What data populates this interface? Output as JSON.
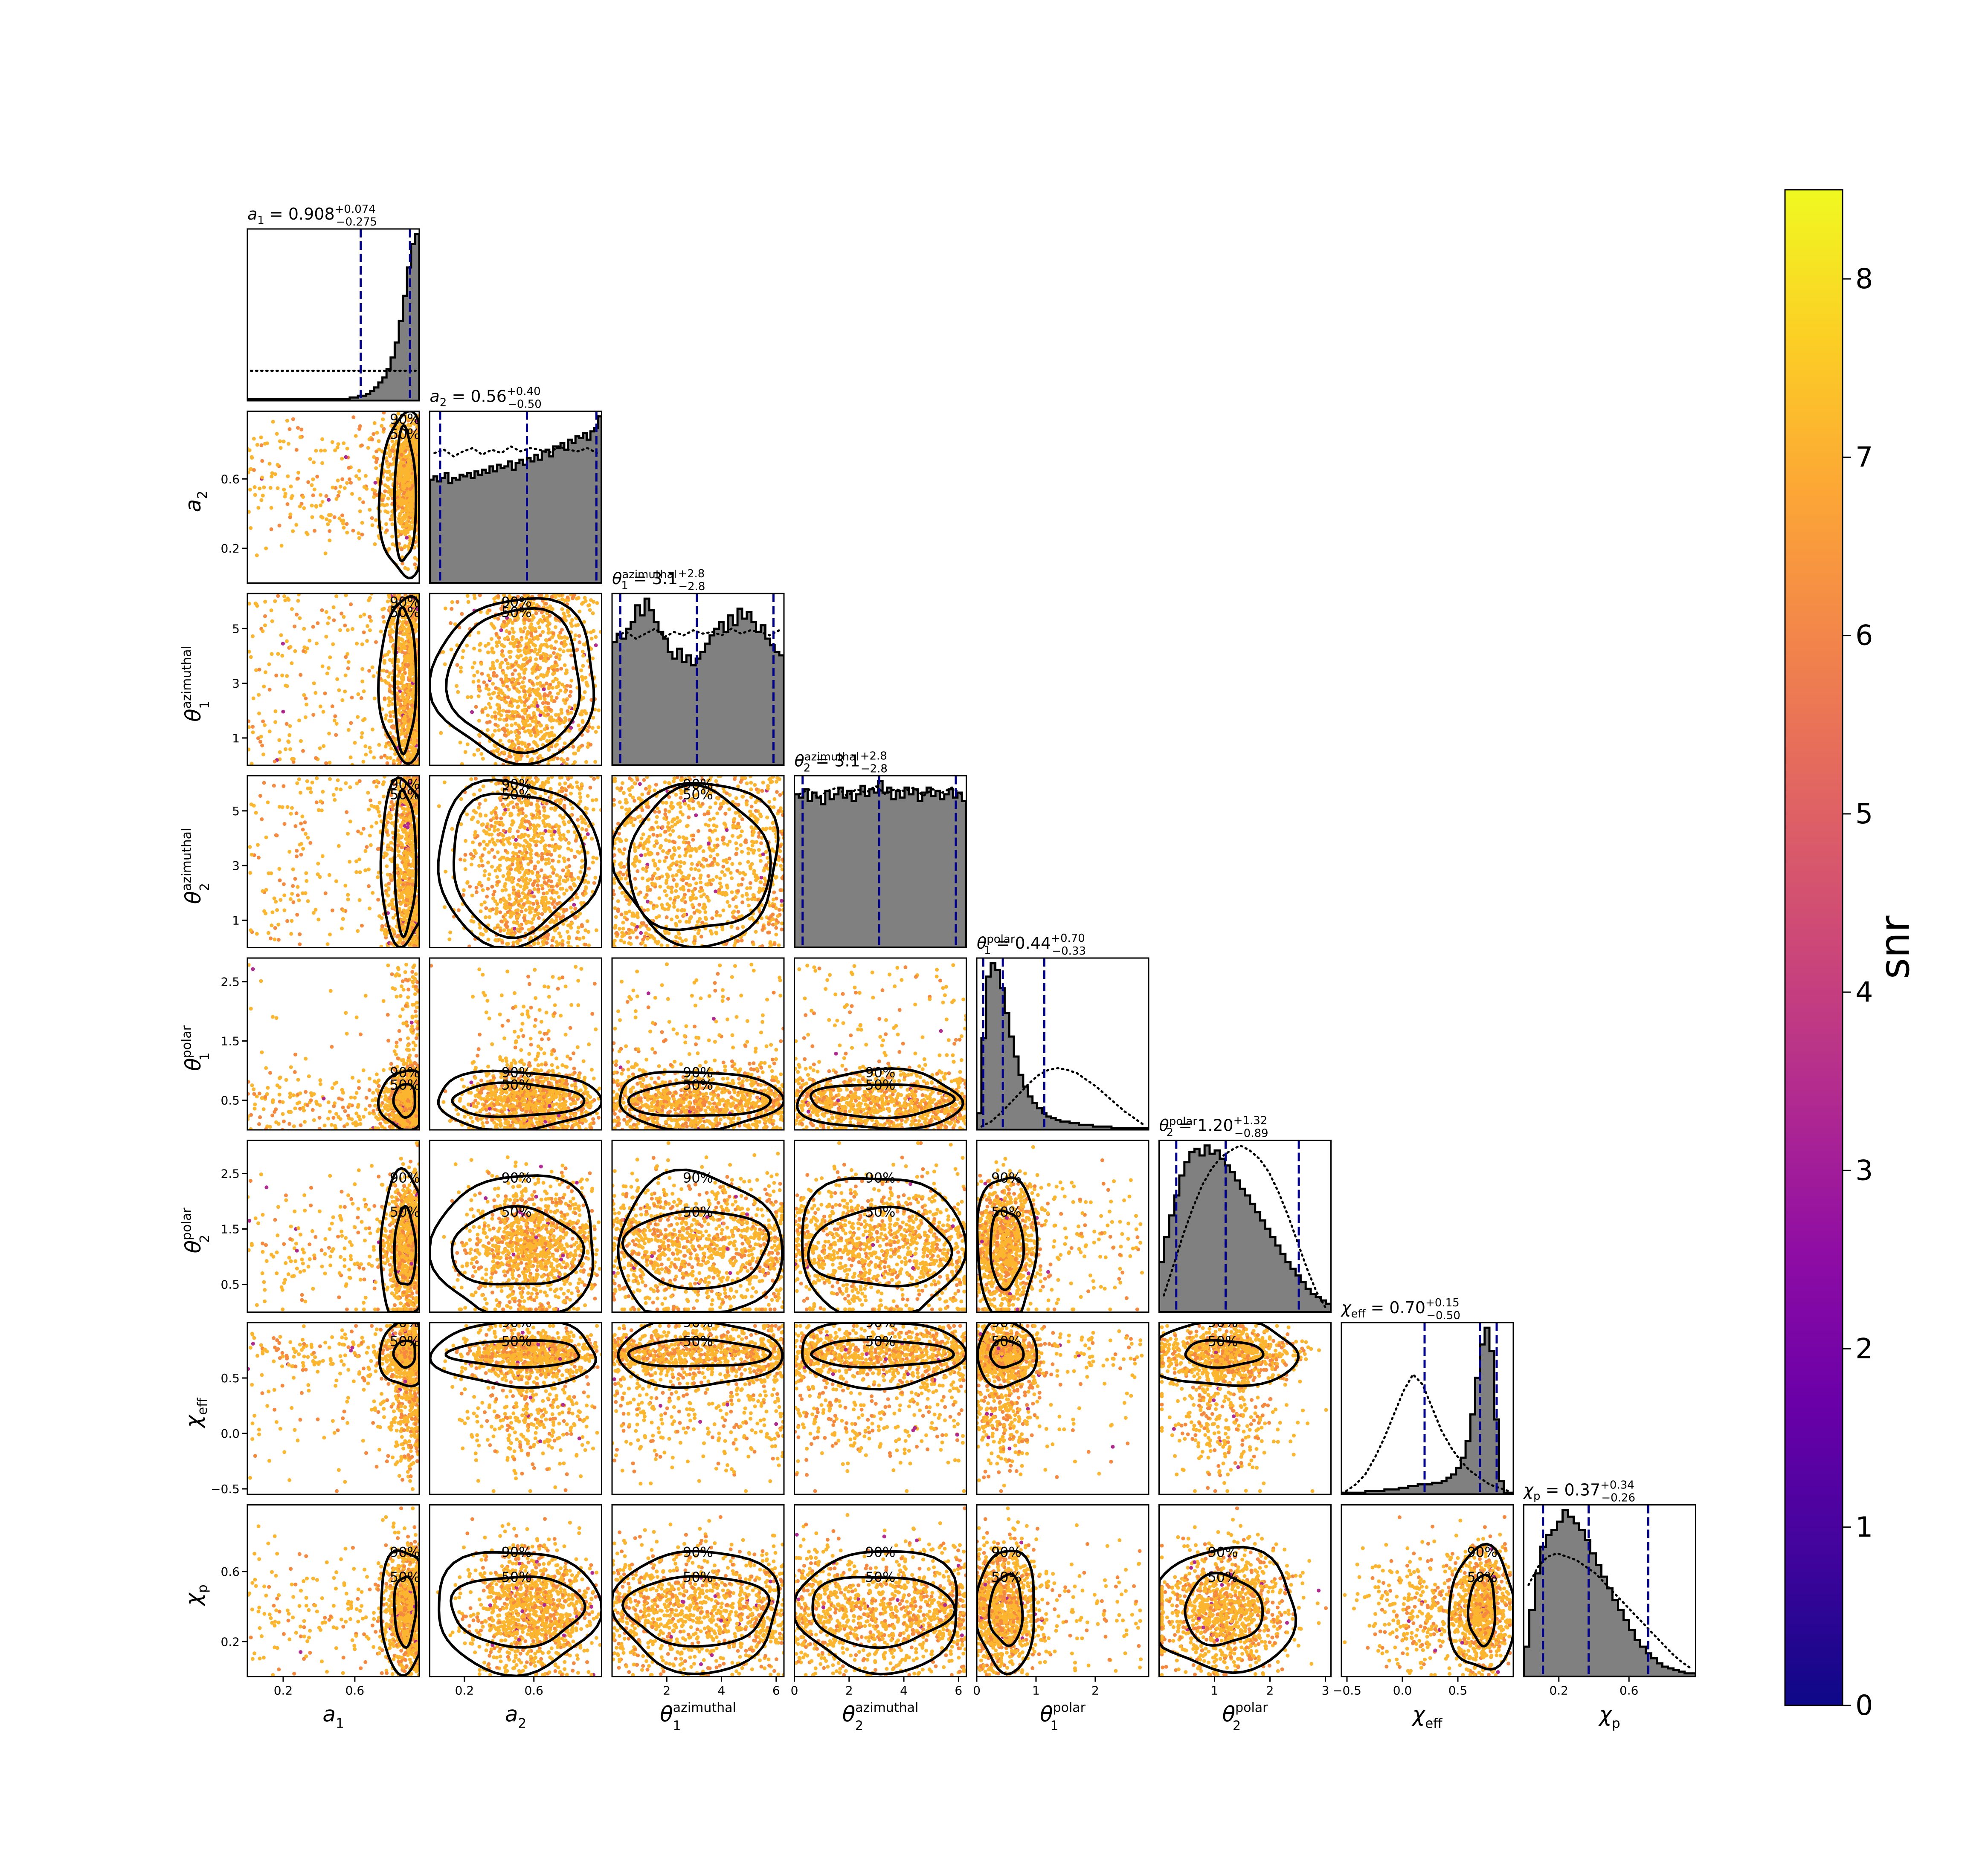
{
  "chart_data": {
    "type": "scatter",
    "parameters": [
      {
        "key": "a1",
        "axis_label": "a",
        "axis_sub": "1",
        "axis_sup": "",
        "lim": [
          0.0,
          0.96
        ],
        "ticks": [
          "0.2",
          "0.6"
        ],
        "tick_values": [
          0.2,
          0.6
        ],
        "title_value": "0.908",
        "err_plus": "+0.074",
        "err_minus": "−0.275",
        "median": 0.908,
        "lo": 0.633,
        "hi": 0.982
      },
      {
        "key": "a2",
        "axis_label": "a",
        "axis_sub": "2",
        "axis_sup": "",
        "lim": [
          0.0,
          0.99
        ],
        "ticks": [
          "0.2",
          "0.6"
        ],
        "tick_values": [
          0.2,
          0.6
        ],
        "title_value": "0.56",
        "err_plus": "+0.40",
        "err_minus": "−0.50",
        "median": 0.56,
        "lo": 0.06,
        "hi": 0.96
      },
      {
        "key": "t1a",
        "axis_label": "θ",
        "axis_sub": "1",
        "axis_sup": "azimuthal",
        "lim": [
          0.0,
          6.283
        ],
        "ticks": [
          "2",
          "4",
          "6"
        ],
        "tick_values": [
          2,
          4,
          6
        ],
        "y_ticks": [
          "1",
          "3",
          "5"
        ],
        "y_tick_values": [
          1,
          3,
          5
        ],
        "title_value": "3.1",
        "err_plus": "+2.8",
        "err_minus": "−2.8",
        "median": 3.1,
        "lo": 0.3,
        "hi": 5.9
      },
      {
        "key": "t2a",
        "axis_label": "θ",
        "axis_sub": "2",
        "axis_sup": "azimuthal",
        "lim": [
          0.0,
          6.283
        ],
        "ticks": [
          "0",
          "2",
          "4",
          "6"
        ],
        "tick_values": [
          0,
          2,
          4,
          6
        ],
        "y_ticks": [
          "1",
          "3",
          "5"
        ],
        "y_tick_values": [
          1,
          3,
          5
        ],
        "title_value": "3.1",
        "err_plus": "+2.8",
        "err_minus": "−2.8",
        "median": 3.1,
        "lo": 0.3,
        "hi": 5.9
      },
      {
        "key": "t1p",
        "axis_label": "θ",
        "axis_sub": "1",
        "axis_sup": "polar",
        "lim": [
          0.0,
          2.9
        ],
        "ticks": [
          "0",
          "1",
          "2"
        ],
        "tick_values": [
          0,
          1,
          2
        ],
        "y_ticks": [
          "0.5",
          "1.5",
          "2.5"
        ],
        "y_tick_values": [
          0.5,
          1.5,
          2.5
        ],
        "title_value": "0.44",
        "err_plus": "+0.70",
        "err_minus": "−0.33",
        "median": 0.44,
        "lo": 0.11,
        "hi": 1.14
      },
      {
        "key": "t2p",
        "axis_label": "θ",
        "axis_sub": "2",
        "axis_sup": "polar",
        "lim": [
          0.0,
          3.1
        ],
        "ticks": [
          "1",
          "2",
          "3"
        ],
        "tick_values": [
          1,
          2,
          3
        ],
        "y_ticks": [
          "0.5",
          "1.5",
          "2.5"
        ],
        "y_tick_values": [
          0.5,
          1.5,
          2.5
        ],
        "title_value": "1.20",
        "err_plus": "+1.32",
        "err_minus": "−0.89",
        "median": 1.2,
        "lo": 0.31,
        "hi": 2.52
      },
      {
        "key": "chi_eff",
        "axis_label": "χ",
        "axis_sub": "eff",
        "axis_sup": "",
        "lim": [
          -0.55,
          1.0
        ],
        "ticks": [
          "−0.5",
          "0.0",
          "0.5"
        ],
        "tick_values": [
          -0.5,
          0.0,
          0.5
        ],
        "title_value": "0.70",
        "err_plus": "+0.15",
        "err_minus": "−0.50",
        "median": 0.7,
        "lo": 0.2,
        "hi": 0.85
      },
      {
        "key": "chi_p",
        "axis_label": "χ",
        "axis_sub": "p",
        "axis_sup": "",
        "lim": [
          0.0,
          0.98
        ],
        "ticks": [
          "0.2",
          "0.6"
        ],
        "tick_values": [
          0.2,
          0.6
        ],
        "title_value": "0.37",
        "err_plus": "+0.34",
        "err_minus": "−0.26",
        "median": 0.37,
        "lo": 0.11,
        "hi": 0.71
      }
    ],
    "histogram_shapes": {
      "a1": [
        0.01,
        0.01,
        0.01,
        0.01,
        0.01,
        0.01,
        0.01,
        0.01,
        0.01,
        0.01,
        0.01,
        0.01,
        0.01,
        0.01,
        0.01,
        0.01,
        0.01,
        0.01,
        0.01,
        0.01,
        0.01,
        0.01,
        0.01,
        0.01,
        0.01,
        0.02,
        0.02,
        0.03,
        0.03,
        0.04,
        0.06,
        0.08,
        0.11,
        0.14,
        0.19,
        0.26,
        0.35,
        0.48,
        0.63,
        0.8,
        0.94,
        1.0
      ],
      "a2": [
        0.62,
        0.64,
        0.61,
        0.63,
        0.66,
        0.6,
        0.63,
        0.62,
        0.65,
        0.64,
        0.66,
        0.63,
        0.67,
        0.65,
        0.68,
        0.66,
        0.7,
        0.67,
        0.71,
        0.69,
        0.7,
        0.73,
        0.68,
        0.72,
        0.74,
        0.71,
        0.75,
        0.73,
        0.77,
        0.74,
        0.79,
        0.8,
        0.76,
        0.82,
        0.81,
        0.84,
        0.8,
        0.86,
        0.84,
        0.88,
        0.87,
        0.9,
        0.86,
        0.91,
        0.93,
        1.0
      ],
      "t1a": [
        0.74,
        0.79,
        0.76,
        0.82,
        0.86,
        0.96,
        0.9,
        1.0,
        0.93,
        0.86,
        0.8,
        0.76,
        0.68,
        0.64,
        0.7,
        0.62,
        0.66,
        0.6,
        0.64,
        0.68,
        0.73,
        0.78,
        0.82,
        0.86,
        0.8,
        0.9,
        0.84,
        0.94,
        0.88,
        0.92,
        0.86,
        0.8,
        0.84,
        0.76,
        0.72,
        0.68,
        0.66
      ],
      "t2a": [
        0.92,
        0.9,
        0.95,
        0.88,
        0.93,
        0.9,
        0.86,
        0.94,
        0.89,
        0.92,
        0.96,
        0.9,
        0.94,
        0.88,
        0.92,
        0.97,
        0.91,
        0.95,
        0.93,
        1.0,
        0.93,
        0.96,
        0.89,
        0.94,
        0.9,
        0.96,
        0.92,
        0.95,
        0.88,
        0.93,
        0.96,
        0.91,
        0.94,
        0.89,
        0.92,
        0.95,
        0.9,
        0.93,
        0.88
      ],
      "t1p": [
        0.1,
        0.55,
        0.92,
        1.0,
        0.96,
        0.85,
        0.7,
        0.56,
        0.44,
        0.33,
        0.26,
        0.2,
        0.16,
        0.13,
        0.1,
        0.08,
        0.07,
        0.06,
        0.05,
        0.05,
        0.04,
        0.04,
        0.03,
        0.03,
        0.03,
        0.02,
        0.02,
        0.02,
        0.02,
        0.01,
        0.01,
        0.01,
        0.01,
        0.01,
        0.01,
        0.01,
        0.01
      ],
      "t2p": [
        0.3,
        0.45,
        0.58,
        0.7,
        0.82,
        0.9,
        0.96,
        0.98,
        0.94,
        1.0,
        0.95,
        0.97,
        0.92,
        0.88,
        0.84,
        0.79,
        0.74,
        0.7,
        0.65,
        0.6,
        0.55,
        0.5,
        0.45,
        0.4,
        0.35,
        0.3,
        0.26,
        0.22,
        0.18,
        0.14,
        0.11,
        0.09,
        0.07,
        0.05
      ],
      "chi_eff": [
        0.01,
        0.01,
        0.01,
        0.01,
        0.01,
        0.02,
        0.02,
        0.02,
        0.02,
        0.03,
        0.03,
        0.03,
        0.04,
        0.04,
        0.05,
        0.05,
        0.06,
        0.06,
        0.06,
        0.07,
        0.07,
        0.08,
        0.1,
        0.12,
        0.16,
        0.22,
        0.32,
        0.48,
        0.7,
        0.9,
        1.0,
        0.86,
        0.45,
        0.08,
        0.01,
        0.01
      ],
      "chi_p": [
        0.18,
        0.4,
        0.62,
        0.78,
        0.85,
        0.88,
        0.93,
        1.0,
        0.96,
        0.92,
        0.88,
        0.82,
        0.74,
        0.67,
        0.6,
        0.53,
        0.46,
        0.4,
        0.34,
        0.28,
        0.22,
        0.18,
        0.14,
        0.11,
        0.08,
        0.06,
        0.05,
        0.04,
        0.03,
        0.02,
        0.02
      ]
    },
    "prior_shapes": {
      "a1": [
        0.18,
        0.18,
        0.18,
        0.18,
        0.18,
        0.18,
        0.18,
        0.18,
        0.18,
        0.18,
        0.18,
        0.18,
        0.18,
        0.18,
        0.18,
        0.18,
        0.18,
        0.18,
        0.18,
        0.18,
        0.18,
        0.18,
        0.18,
        0.18
      ],
      "a2": [
        0.78,
        0.8,
        0.76,
        0.79,
        0.81,
        0.77,
        0.8,
        0.78,
        0.82,
        0.79,
        0.81,
        0.8,
        0.78,
        0.82,
        0.8,
        0.79,
        0.81,
        0.78
      ],
      "t1a": [
        0.78,
        0.8,
        0.76,
        0.79,
        0.82,
        0.77,
        0.8,
        0.78,
        0.81,
        0.79,
        0.8,
        0.78,
        0.82,
        0.79,
        0.81,
        0.8,
        0.78,
        0.81
      ],
      "t2a": [
        0.92,
        0.95,
        0.9,
        0.94,
        0.96,
        0.91,
        0.95,
        0.93,
        0.97,
        0.92,
        0.95,
        0.94,
        0.96,
        0.91,
        0.95,
        0.93,
        0.96,
        0.92
      ],
      "t1p": [
        0.02,
        0.05,
        0.1,
        0.16,
        0.22,
        0.28,
        0.33,
        0.36,
        0.37,
        0.36,
        0.34,
        0.3,
        0.26,
        0.21,
        0.16,
        0.11,
        0.07,
        0.03
      ],
      "t2p": [
        0.1,
        0.28,
        0.46,
        0.62,
        0.76,
        0.86,
        0.93,
        0.97,
        1.0,
        0.97,
        0.92,
        0.84,
        0.72,
        0.58,
        0.42,
        0.26,
        0.12,
        0.02
      ],
      "chi_eff": [
        0.02,
        0.06,
        0.12,
        0.22,
        0.34,
        0.48,
        0.62,
        0.72,
        0.66,
        0.52,
        0.38,
        0.28,
        0.2,
        0.14,
        0.1,
        0.06,
        0.04,
        0.02
      ],
      "chi_p": [
        0.55,
        0.66,
        0.72,
        0.74,
        0.72,
        0.7,
        0.66,
        0.62,
        0.56,
        0.5,
        0.44,
        0.38,
        0.32,
        0.26,
        0.2,
        0.14,
        0.09,
        0.05
      ]
    },
    "contour_levels": [
      "50%",
      "90%"
    ],
    "colorbar": {
      "label": "snr",
      "range": [
        0,
        8.5
      ],
      "ticks": [
        "0",
        "1",
        "2",
        "3",
        "4",
        "5",
        "6",
        "7",
        "8"
      ],
      "tick_values": [
        0,
        1,
        2,
        3,
        4,
        5,
        6,
        7,
        8
      ],
      "colormap": "plasma",
      "stops": [
        "#0d0887",
        "#41049d",
        "#6a00a8",
        "#8f0da4",
        "#b12a90",
        "#cc4778",
        "#e16462",
        "#f2844b",
        "#fca636",
        "#fcce25",
        "#f0f921"
      ]
    },
    "colors": {
      "histogram_fill": "#808080",
      "quantile_line": "#00008b",
      "contour": "#000000",
      "scatter_base": "#fbb52e",
      "scatter_low": "#f5893f"
    }
  }
}
